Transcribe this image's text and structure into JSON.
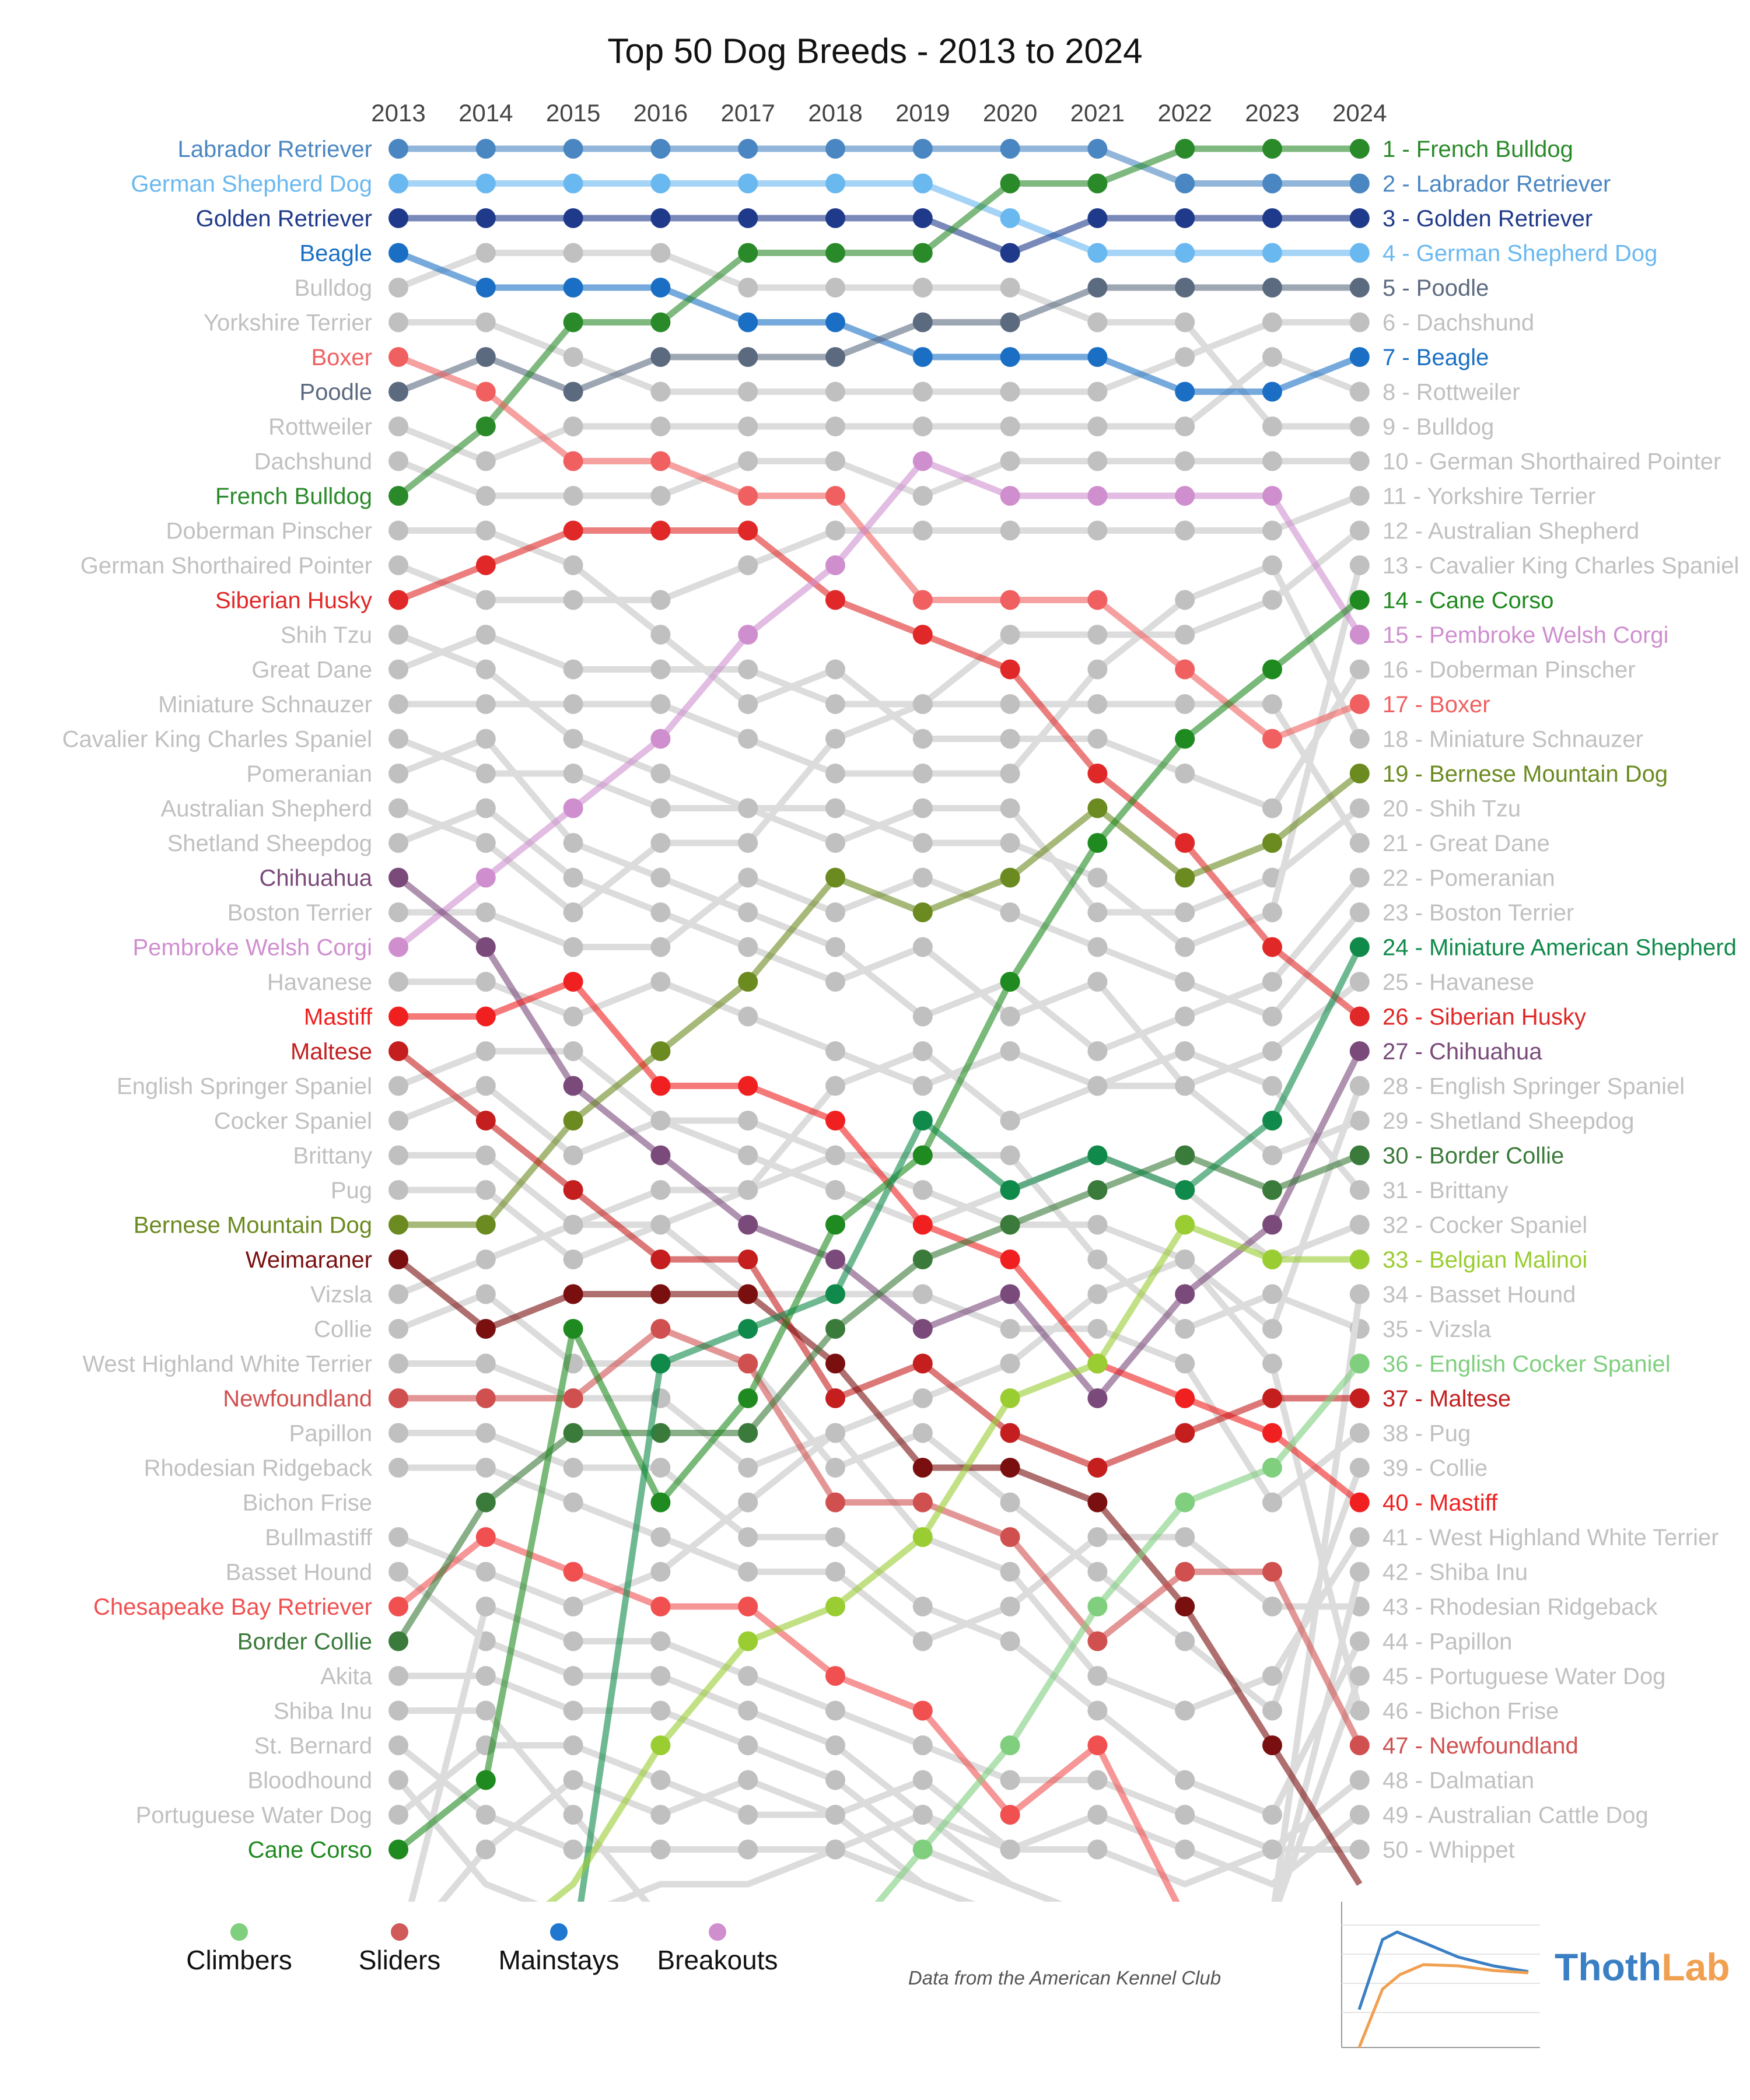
{
  "chart_data": {
    "type": "bump",
    "title": "Top 50 Dog Breeds - 2013 to 2024",
    "years": [
      "2013",
      "2014",
      "2015",
      "2016",
      "2017",
      "2018",
      "2019",
      "2020",
      "2021",
      "2022",
      "2023",
      "2024"
    ],
    "ylim": [
      1,
      50
    ],
    "legend": [
      {
        "label": "Climbers",
        "color": "#7fcf7f"
      },
      {
        "label": "Sliders",
        "color": "#d05a5a"
      },
      {
        "label": "Mainstays",
        "color": "#1f77d0"
      },
      {
        "label": "Breakouts",
        "color": "#cf8fcf"
      }
    ],
    "source_note": "Data from the American Kennel Club",
    "brand": {
      "part1": "Thoth",
      "part2": "Lab",
      "color1": "#3a7fc4",
      "color2": "#f0a050"
    },
    "gray_color": "#c0c0c0",
    "left_labels": [
      "Labrador Retriever",
      "German Shepherd Dog",
      "Golden Retriever",
      "Beagle",
      "Bulldog",
      "Yorkshire Terrier",
      "Boxer",
      "Poodle",
      "Rottweiler",
      "Dachshund",
      "French Bulldog",
      "Doberman Pinscher",
      "German Shorthaired Pointer",
      "Siberian Husky",
      "Shih Tzu",
      "Great Dane",
      "Miniature Schnauzer",
      "Cavalier King Charles Spaniel",
      "Pomeranian",
      "Australian Shepherd",
      "Shetland Sheepdog",
      "Chihuahua",
      "Boston Terrier",
      "Pembroke Welsh Corgi",
      "Havanese",
      "Mastiff",
      "Maltese",
      "English Springer Spaniel",
      "Cocker Spaniel",
      "Brittany",
      "Pug",
      "Bernese Mountain Dog",
      "Weimaraner",
      "Vizsla",
      "Collie",
      "West Highland White Terrier",
      "Newfoundland",
      "Papillon",
      "Rhodesian Ridgeback",
      "Bichon Frise",
      "Bullmastiff",
      "Basset Hound",
      "Chesapeake Bay Retriever",
      "Border Collie",
      "Akita",
      "Shiba Inu",
      "St. Bernard",
      "Bloodhound",
      "Portuguese Water Dog",
      "Cane Corso"
    ],
    "right_labels": [
      "1 - French Bulldog",
      "2 - Labrador Retriever",
      "3 - Golden Retriever",
      "4 - German Shepherd Dog",
      "5 - Poodle",
      "6 - Dachshund",
      "7 - Beagle",
      "8 - Rottweiler",
      "9 - Bulldog",
      "10 - German Shorthaired Pointer",
      "11 - Yorkshire Terrier",
      "12 - Australian Shepherd",
      "13 - Cavalier King Charles Spaniel",
      "14 - Cane Corso",
      "15 - Pembroke Welsh Corgi",
      "16 - Doberman Pinscher",
      "17 - Boxer",
      "18 - Miniature Schnauzer",
      "19 - Bernese Mountain Dog",
      "20 - Shih Tzu",
      "21 - Great Dane",
      "22 - Pomeranian",
      "23 - Boston Terrier",
      "24 - Miniature American Shepherd",
      "25 - Havanese",
      "26 - Siberian Husky",
      "27 - Chihuahua",
      "28 - English Springer Spaniel",
      "29 - Shetland Sheepdog",
      "30 - Border Collie",
      "31 - Brittany",
      "32 - Cocker Spaniel",
      "33 - Belgian Malinoi",
      "34 - Basset Hound",
      "35 - Vizsla",
      "36 - English Cocker Spaniel",
      "37 - Maltese",
      "38 - Pug",
      "39 - Collie",
      "40 - Mastiff",
      "41 - West Highland White Terrier",
      "42 - Shiba Inu",
      "43 - Rhodesian Ridgeback",
      "44 - Papillon",
      "45 - Portuguese Water Dog",
      "46 - Bichon Frise",
      "47 - Newfoundland",
      "48 - Dalmatian",
      "49 - Australian Cattle Dog",
      "50 - Whippet"
    ],
    "left_colors": {
      "Labrador Retriever": "#4a86c2",
      "German Shepherd Dog": "#6ab8f0",
      "Golden Retriever": "#1f3a8a",
      "Beagle": "#1a6fc4",
      "Boxer": "#f06060",
      "Poodle": "#5c6a80",
      "French Bulldog": "#2a8a2a",
      "Siberian Husky": "#e02828",
      "Chihuahua": "#7a4a7a",
      "Pembroke Welsh Corgi": "#cf8fcf",
      "Mastiff": "#f02020",
      "Maltese": "#c41e1e",
      "Bernese Mountain Dog": "#6b8a20",
      "Weimaraner": "#7a0f0f",
      "Newfoundland": "#d05050",
      "Chesapeake Bay Retriever": "#f05050",
      "Border Collie": "#3a7a3a",
      "Cane Corso": "#1f8a1f"
    },
    "right_colors": {
      "1 - French Bulldog": "#2a8a2a",
      "2 - Labrador Retriever": "#4a86c2",
      "3 - Golden Retriever": "#1f3a8a",
      "4 - German Shepherd Dog": "#6ab8f0",
      "5 - Poodle": "#5c6a80",
      "7 - Beagle": "#1a6fc4",
      "14 - Cane Corso": "#1f8a1f",
      "15 - Pembroke Welsh Corgi": "#cf8fcf",
      "17 - Boxer": "#f06060",
      "19 - Bernese Mountain Dog": "#6b8a20",
      "24 - Miniature American Shepherd": "#0f8a4a",
      "26 - Siberian Husky": "#e02828",
      "27 - Chihuahua": "#7a4a7a",
      "30 - Border Collie": "#3a7a3a",
      "33 - Belgian Malinoi": "#9acd32",
      "36 - English Cocker Spaniel": "#7fcf7f",
      "37 - Maltese": "#c41e1e",
      "40 - Mastiff": "#f02020",
      "47 - Newfoundland": "#d05050"
    },
    "series": [
      {
        "name": "Labrador Retriever",
        "color": "#4a86c2",
        "ranks": [
          1,
          1,
          1,
          1,
          1,
          1,
          1,
          1,
          1,
          2,
          2,
          2
        ]
      },
      {
        "name": "German Shepherd Dog",
        "color": "#6ab8f0",
        "ranks": [
          2,
          2,
          2,
          2,
          2,
          2,
          2,
          3,
          4,
          4,
          4,
          4
        ]
      },
      {
        "name": "Golden Retriever",
        "color": "#1f3a8a",
        "ranks": [
          3,
          3,
          3,
          3,
          3,
          3,
          3,
          4,
          3,
          3,
          3,
          3
        ]
      },
      {
        "name": "Beagle",
        "color": "#1a6fc4",
        "ranks": [
          4,
          5,
          5,
          5,
          6,
          6,
          7,
          7,
          7,
          8,
          8,
          7
        ]
      },
      {
        "name": "Poodle",
        "color": "#5c6a80",
        "ranks": [
          8,
          7,
          8,
          7,
          7,
          7,
          6,
          6,
          5,
          5,
          5,
          5
        ]
      },
      {
        "name": "French Bulldog",
        "color": "#2a8a2a",
        "ranks": [
          11,
          9,
          6,
          6,
          4,
          4,
          4,
          2,
          2,
          1,
          1,
          1
        ]
      },
      {
        "name": "Boxer",
        "color": "#f06060",
        "ranks": [
          7,
          8,
          10,
          10,
          11,
          11,
          14,
          14,
          14,
          16,
          18,
          17
        ]
      },
      {
        "name": "Siberian Husky",
        "color": "#e02828",
        "ranks": [
          14,
          13,
          12,
          12,
          12,
          14,
          15,
          16,
          19,
          21,
          24,
          26
        ]
      },
      {
        "name": "Pembroke Welsh Corgi",
        "color": "#cf8fcf",
        "ranks": [
          24,
          22,
          20,
          18,
          15,
          13,
          10,
          11,
          11,
          11,
          11,
          15
        ]
      },
      {
        "name": "Chihuahua",
        "color": "#7a4a7a",
        "ranks": [
          22,
          24,
          28,
          30,
          32,
          33,
          35,
          34,
          37,
          34,
          32,
          27
        ]
      },
      {
        "name": "Bernese Mountain Dog",
        "color": "#6b8a20",
        "ranks": [
          32,
          32,
          29,
          27,
          25,
          22,
          23,
          22,
          20,
          22,
          21,
          19
        ]
      },
      {
        "name": "Mastiff",
        "color": "#f02020",
        "ranks": [
          26,
          26,
          25,
          28,
          28,
          29,
          32,
          33,
          36,
          37,
          38,
          40
        ]
      },
      {
        "name": "Maltese",
        "color": "#c41e1e",
        "ranks": [
          27,
          29,
          31,
          33,
          33,
          37,
          36,
          38,
          39,
          38,
          37,
          37
        ]
      },
      {
        "name": "Weimaraner",
        "color": "#7a0f0f",
        "ranks": [
          33,
          35,
          34,
          34,
          34,
          36,
          39,
          39,
          40,
          43,
          47,
          51
        ]
      },
      {
        "name": "Newfoundland",
        "color": "#d05050",
        "ranks": [
          37,
          37,
          37,
          35,
          36,
          40,
          40,
          41,
          44,
          42,
          42,
          47
        ]
      },
      {
        "name": "Chesapeake Bay Retriever",
        "color": "#f05050",
        "ranks": [
          43,
          41,
          42,
          43,
          43,
          45,
          46,
          49,
          47,
          52,
          52,
          52
        ]
      },
      {
        "name": "Border Collie",
        "color": "#3a7a3a",
        "ranks": [
          44,
          40,
          38,
          38,
          38,
          35,
          33,
          32,
          31,
          30,
          31,
          30
        ]
      },
      {
        "name": "Cane Corso",
        "color": "#1f8a1f",
        "ranks": [
          50,
          48,
          35,
          40,
          37,
          32,
          30,
          25,
          21,
          18,
          16,
          14
        ]
      },
      {
        "name": "Miniature American Shepherd",
        "color": "#0f8a4a",
        "ranks": [
          53,
          53,
          53,
          36,
          35,
          34,
          29,
          31,
          30,
          31,
          29,
          24
        ]
      },
      {
        "name": "Belgian Malinoi",
        "color": "#9acd32",
        "ranks": [
          53,
          53,
          51,
          47,
          44,
          43,
          41,
          37,
          36,
          32,
          33,
          33
        ]
      },
      {
        "name": "English Cocker Spaniel",
        "color": "#7fcf7f",
        "ranks": [
          53,
          53,
          53,
          53,
          53,
          53,
          50,
          47,
          43,
          40,
          39,
          36
        ]
      }
    ],
    "gray_ranks": [
      [
        5,
        4,
        4,
        4,
        5,
        5,
        5,
        5,
        6,
        6,
        9,
        9
      ],
      [
        6,
        6,
        7,
        8,
        8,
        8,
        8,
        8,
        8,
        7,
        6,
        6
      ],
      [
        9,
        10,
        9,
        9,
        9,
        9,
        9,
        9,
        9,
        9,
        7,
        8
      ],
      [
        10,
        11,
        11,
        11,
        10,
        10,
        11,
        10,
        10,
        10,
        10,
        10
      ],
      [
        12,
        12,
        13,
        15,
        17,
        16,
        18,
        18,
        18,
        19,
        20,
        16
      ],
      [
        13,
        14,
        14,
        14,
        13,
        12,
        12,
        12,
        12,
        12,
        12,
        11
      ],
      [
        15,
        16,
        18,
        19,
        20,
        21,
        20,
        20,
        23,
        23,
        22,
        20
      ],
      [
        16,
        15,
        16,
        16,
        16,
        17,
        17,
        17,
        17,
        17,
        17,
        21
      ],
      [
        17,
        17,
        17,
        17,
        18,
        19,
        19,
        19,
        16,
        14,
        13,
        18
      ],
      [
        18,
        19,
        19,
        20,
        20,
        20,
        21,
        21,
        22,
        24,
        23,
        13
      ],
      [
        19,
        18,
        21,
        22,
        23,
        24,
        26,
        25,
        27,
        26,
        25,
        22
      ],
      [
        20,
        21,
        23,
        21,
        21,
        18,
        17,
        15,
        15,
        15,
        14,
        12
      ],
      [
        21,
        20,
        22,
        23,
        24,
        25,
        24,
        26,
        25,
        28,
        30,
        29
      ],
      [
        23,
        23,
        24,
        24,
        22,
        23,
        22,
        23,
        24,
        25,
        26,
        23
      ],
      [
        25,
        25,
        26,
        25,
        26,
        27,
        28,
        27,
        28,
        28,
        27,
        25
      ],
      [
        28,
        27,
        27,
        29,
        29,
        30,
        31,
        32,
        32,
        33,
        35,
        28
      ],
      [
        29,
        28,
        30,
        29,
        30,
        31,
        32,
        31,
        30,
        31,
        33,
        32
      ],
      [
        30,
        30,
        32,
        32,
        31,
        28,
        27,
        29,
        28,
        27,
        28,
        31
      ],
      [
        31,
        31,
        33,
        32,
        34,
        34,
        34,
        35,
        35,
        36,
        40,
        38
      ],
      [
        34,
        33,
        32,
        31,
        31,
        30,
        30,
        30,
        33,
        35,
        34,
        35
      ],
      [
        35,
        34,
        36,
        36,
        36,
        39,
        38,
        40,
        42,
        44,
        46,
        39
      ],
      [
        36,
        36,
        37,
        37,
        39,
        38,
        41,
        42,
        45,
        46,
        45,
        41
      ],
      [
        38,
        38,
        39,
        39,
        41,
        41,
        43,
        44,
        46,
        48,
        49,
        44
      ],
      [
        39,
        39,
        40,
        41,
        42,
        42,
        44,
        43,
        41,
        41,
        43,
        43
      ],
      [
        41,
        42,
        43,
        42,
        40,
        38,
        37,
        36,
        34,
        33,
        36,
        46
      ],
      [
        42,
        44,
        45,
        45,
        46,
        47,
        49,
        51,
        52,
        52,
        52,
        34
      ],
      [
        45,
        45,
        46,
        46,
        47,
        48,
        50,
        51,
        52,
        52,
        52,
        42
      ],
      [
        46,
        46,
        49,
        52,
        52,
        52,
        52,
        52,
        52,
        52,
        52,
        52
      ],
      [
        47,
        49,
        50,
        50,
        50,
        50,
        51,
        52,
        52,
        52,
        52,
        52
      ],
      [
        48,
        51,
        52,
        52,
        52,
        52,
        52,
        52,
        52,
        52,
        52,
        52
      ],
      [
        49,
        47,
        47,
        48,
        49,
        49,
        51,
        52,
        52,
        52,
        52,
        45
      ],
      [
        53,
        43,
        44,
        44,
        45,
        46,
        47,
        48,
        48,
        49,
        50,
        48
      ],
      [
        53,
        50,
        48,
        49,
        48,
        49,
        48,
        50,
        49,
        50,
        51,
        49
      ],
      [
        53,
        52,
        52,
        51,
        51,
        50,
        49,
        50,
        50,
        51,
        50,
        50
      ]
    ]
  }
}
